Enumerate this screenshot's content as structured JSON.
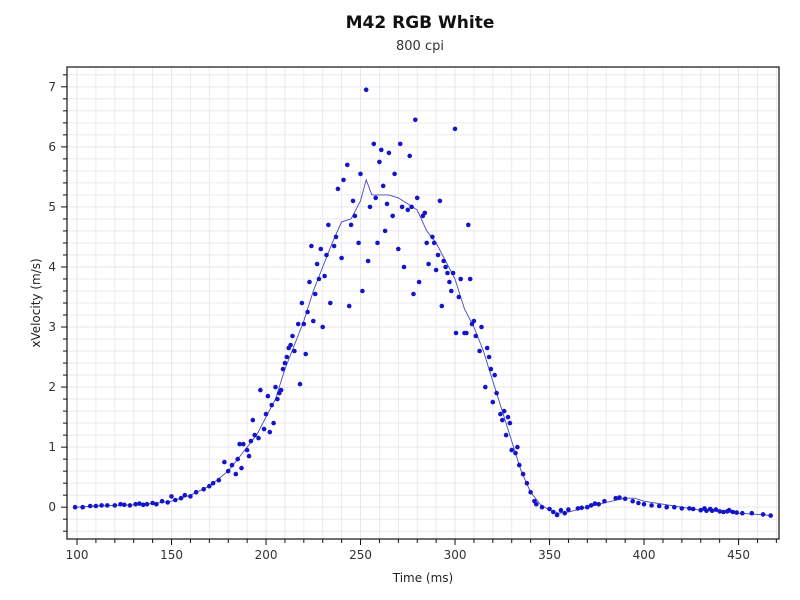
{
  "chart_data": {
    "type": "scatter",
    "title": "M42 RGB White",
    "subtitle": "800 cpi",
    "xlabel": "Time (ms)",
    "ylabel": "xVelocity (m/s)",
    "xlim": [
      94.7,
      471.4
    ],
    "ylim": [
      -0.53,
      7.33
    ],
    "xticks": [
      100,
      150,
      200,
      250,
      300,
      350,
      400,
      450
    ],
    "yticks": [
      0,
      1,
      2,
      3,
      4,
      5,
      6,
      7
    ],
    "grid": true,
    "colors": {
      "points": "#1414c8",
      "line": "#4646c0",
      "grid": "#e6e6ee"
    },
    "series": [
      {
        "kind": "points",
        "data": [
          [
            99,
            0
          ],
          [
            103,
            0
          ],
          [
            107,
            0.02
          ],
          [
            110,
            0.02
          ],
          [
            113,
            0.03
          ],
          [
            116,
            0.03
          ],
          [
            120,
            0.03
          ],
          [
            123,
            0.05
          ],
          [
            125,
            0.04
          ],
          [
            128,
            0.03
          ],
          [
            131,
            0.05
          ],
          [
            133,
            0.06
          ],
          [
            135,
            0.04
          ],
          [
            137,
            0.05
          ],
          [
            140,
            0.07
          ],
          [
            142,
            0.05
          ],
          [
            145,
            0.1
          ],
          [
            148,
            0.08
          ],
          [
            150,
            0.18
          ],
          [
            152,
            0.12
          ],
          [
            155,
            0.15
          ],
          [
            157,
            0.2
          ],
          [
            160,
            0.18
          ],
          [
            163,
            0.25
          ],
          [
            167,
            0.3
          ],
          [
            170,
            0.35
          ],
          [
            172,
            0.4
          ],
          [
            175,
            0.45
          ],
          [
            178,
            0.75
          ],
          [
            180,
            0.6
          ],
          [
            182,
            0.7
          ],
          [
            184,
            0.55
          ],
          [
            185,
            0.8
          ],
          [
            186,
            1.05
          ],
          [
            187,
            0.65
          ],
          [
            188,
            1.05
          ],
          [
            190,
            0.95
          ],
          [
            191,
            0.85
          ],
          [
            192,
            1.1
          ],
          [
            193,
            1.45
          ],
          [
            194,
            1.2
          ],
          [
            196,
            1.15
          ],
          [
            197,
            1.95
          ],
          [
            199,
            1.3
          ],
          [
            200,
            1.55
          ],
          [
            201,
            1.85
          ],
          [
            202,
            1.25
          ],
          [
            203,
            1.7
          ],
          [
            204,
            1.4
          ],
          [
            205,
            2.0
          ],
          [
            206,
            1.8
          ],
          [
            207,
            1.9
          ],
          [
            208,
            1.95
          ],
          [
            209,
            2.3
          ],
          [
            210,
            2.4
          ],
          [
            211,
            2.5
          ],
          [
            212,
            2.65
          ],
          [
            213,
            2.7
          ],
          [
            214,
            2.85
          ],
          [
            215,
            2.6
          ],
          [
            217,
            3.05
          ],
          [
            218,
            2.05
          ],
          [
            219,
            3.4
          ],
          [
            220,
            3.05
          ],
          [
            221,
            2.55
          ],
          [
            222,
            3.25
          ],
          [
            223,
            3.75
          ],
          [
            224,
            4.35
          ],
          [
            225,
            3.1
          ],
          [
            226,
            3.55
          ],
          [
            227,
            4.05
          ],
          [
            228,
            3.8
          ],
          [
            229,
            4.3
          ],
          [
            230,
            3.0
          ],
          [
            231,
            3.85
          ],
          [
            232,
            4.2
          ],
          [
            233,
            4.7
          ],
          [
            234,
            3.4
          ],
          [
            236,
            4.35
          ],
          [
            237,
            4.5
          ],
          [
            238,
            5.3
          ],
          [
            240,
            4.15
          ],
          [
            241,
            5.45
          ],
          [
            243,
            5.7
          ],
          [
            244,
            3.35
          ],
          [
            245,
            4.7
          ],
          [
            246,
            5.1
          ],
          [
            247,
            4.85
          ],
          [
            249,
            4.4
          ],
          [
            250,
            5.55
          ],
          [
            251,
            3.6
          ],
          [
            253,
            6.95
          ],
          [
            254,
            4.1
          ],
          [
            255,
            5.0
          ],
          [
            257,
            6.05
          ],
          [
            258,
            5.15
          ],
          [
            259,
            4.4
          ],
          [
            260,
            5.75
          ],
          [
            261,
            5.95
          ],
          [
            262,
            5.35
          ],
          [
            263,
            4.6
          ],
          [
            264,
            5.05
          ],
          [
            265,
            5.9
          ],
          [
            267,
            4.85
          ],
          [
            268,
            5.55
          ],
          [
            270,
            4.3
          ],
          [
            271,
            6.05
          ],
          [
            272,
            5.0
          ],
          [
            273,
            4.0
          ],
          [
            275,
            4.95
          ],
          [
            276,
            5.85
          ],
          [
            277,
            5.0
          ],
          [
            278,
            3.55
          ],
          [
            279,
            6.45
          ],
          [
            280,
            5.15
          ],
          [
            281,
            3.75
          ],
          [
            283,
            4.85
          ],
          [
            284,
            4.9
          ],
          [
            285,
            4.4
          ],
          [
            286,
            4.05
          ],
          [
            288,
            4.5
          ],
          [
            289,
            4.4
          ],
          [
            290,
            3.95
          ],
          [
            291,
            4.2
          ],
          [
            292,
            5.1
          ],
          [
            293,
            3.35
          ],
          [
            294,
            4.1
          ],
          [
            295,
            4.0
          ],
          [
            296,
            3.9
          ],
          [
            297,
            3.75
          ],
          [
            298,
            3.6
          ],
          [
            299,
            3.9
          ],
          [
            300,
            6.3
          ],
          [
            300.5,
            2.9
          ],
          [
            302,
            3.5
          ],
          [
            303,
            3.8
          ],
          [
            305,
            2.9
          ],
          [
            306,
            2.9
          ],
          [
            307,
            4.7
          ],
          [
            308,
            3.8
          ],
          [
            309,
            3.05
          ],
          [
            310,
            3.1
          ],
          [
            311,
            2.85
          ],
          [
            313,
            2.6
          ],
          [
            314,
            3.0
          ],
          [
            316,
            2.0
          ],
          [
            317,
            2.65
          ],
          [
            318,
            2.5
          ],
          [
            319,
            2.3
          ],
          [
            320,
            1.75
          ],
          [
            321,
            2.2
          ],
          [
            322,
            1.9
          ],
          [
            324,
            1.55
          ],
          [
            325,
            1.45
          ],
          [
            326,
            1.6
          ],
          [
            327,
            1.2
          ],
          [
            328,
            1.5
          ],
          [
            329,
            1.4
          ],
          [
            330,
            0.95
          ],
          [
            332,
            0.9
          ],
          [
            333,
            1.0
          ],
          [
            334,
            0.7
          ],
          [
            336,
            0.55
          ],
          [
            338,
            0.4
          ],
          [
            340,
            0.25
          ],
          [
            342,
            0.1
          ],
          [
            343,
            0.05
          ],
          [
            346,
            0
          ],
          [
            350,
            -0.03
          ],
          [
            352,
            -0.08
          ],
          [
            354,
            -0.13
          ],
          [
            356,
            -0.05
          ],
          [
            358,
            -0.1
          ],
          [
            360,
            -0.04
          ],
          [
            365,
            -0.02
          ],
          [
            367,
            -0.01
          ],
          [
            370,
            0.0
          ],
          [
            372,
            0.03
          ],
          [
            374,
            0.06
          ],
          [
            376,
            0.05
          ],
          [
            379,
            0.1
          ],
          [
            385,
            0.15
          ],
          [
            387,
            0.16
          ],
          [
            390,
            0.14
          ],
          [
            394,
            0.1
          ],
          [
            397,
            0.07
          ],
          [
            400,
            0.05
          ],
          [
            404,
            0.03
          ],
          [
            408,
            0.02
          ],
          [
            412,
            0.0
          ],
          [
            416,
            0.0
          ],
          [
            420,
            -0.02
          ],
          [
            424,
            -0.02
          ],
          [
            426,
            -0.03
          ],
          [
            430,
            -0.05
          ],
          [
            432,
            -0.02
          ],
          [
            433,
            -0.06
          ],
          [
            435,
            -0.03
          ],
          [
            436,
            -0.06
          ],
          [
            438,
            -0.04
          ],
          [
            440,
            -0.07
          ],
          [
            442,
            -0.08
          ],
          [
            444,
            -0.07
          ],
          [
            445,
            -0.05
          ],
          [
            447,
            -0.08
          ],
          [
            449,
            -0.09
          ],
          [
            452,
            -0.1
          ],
          [
            457,
            -0.1
          ],
          [
            463,
            -0.12
          ],
          [
            467,
            -0.14
          ]
        ]
      },
      {
        "kind": "line",
        "data": [
          [
            100,
            0
          ],
          [
            110,
            0.02
          ],
          [
            120,
            0.03
          ],
          [
            130,
            0.04
          ],
          [
            140,
            0.06
          ],
          [
            150,
            0.1
          ],
          [
            160,
            0.2
          ],
          [
            170,
            0.35
          ],
          [
            180,
            0.6
          ],
          [
            185,
            0.8
          ],
          [
            190,
            1.0
          ],
          [
            195,
            1.2
          ],
          [
            200,
            1.5
          ],
          [
            205,
            1.8
          ],
          [
            210,
            2.3
          ],
          [
            215,
            2.7
          ],
          [
            220,
            3.1
          ],
          [
            225,
            3.6
          ],
          [
            230,
            4.0
          ],
          [
            235,
            4.4
          ],
          [
            240,
            4.75
          ],
          [
            245,
            4.8
          ],
          [
            250,
            5.1
          ],
          [
            253,
            5.45
          ],
          [
            256,
            5.2
          ],
          [
            260,
            5.2
          ],
          [
            265,
            5.2
          ],
          [
            270,
            5.15
          ],
          [
            275,
            5.05
          ],
          [
            280,
            4.95
          ],
          [
            285,
            4.6
          ],
          [
            290,
            4.4
          ],
          [
            295,
            4.1
          ],
          [
            300,
            3.8
          ],
          [
            305,
            3.3
          ],
          [
            310,
            3.0
          ],
          [
            315,
            2.6
          ],
          [
            320,
            2.1
          ],
          [
            325,
            1.6
          ],
          [
            330,
            1.1
          ],
          [
            335,
            0.6
          ],
          [
            340,
            0.25
          ],
          [
            345,
            0.05
          ],
          [
            350,
            -0.05
          ],
          [
            355,
            -0.1
          ],
          [
            360,
            -0.08
          ],
          [
            370,
            0.0
          ],
          [
            380,
            0.08
          ],
          [
            390,
            0.15
          ],
          [
            395,
            0.15
          ],
          [
            400,
            0.1
          ],
          [
            410,
            0.05
          ],
          [
            420,
            0.0
          ],
          [
            430,
            -0.05
          ],
          [
            440,
            -0.07
          ],
          [
            450,
            -0.1
          ],
          [
            460,
            -0.12
          ],
          [
            468,
            -0.14
          ]
        ]
      }
    ]
  }
}
